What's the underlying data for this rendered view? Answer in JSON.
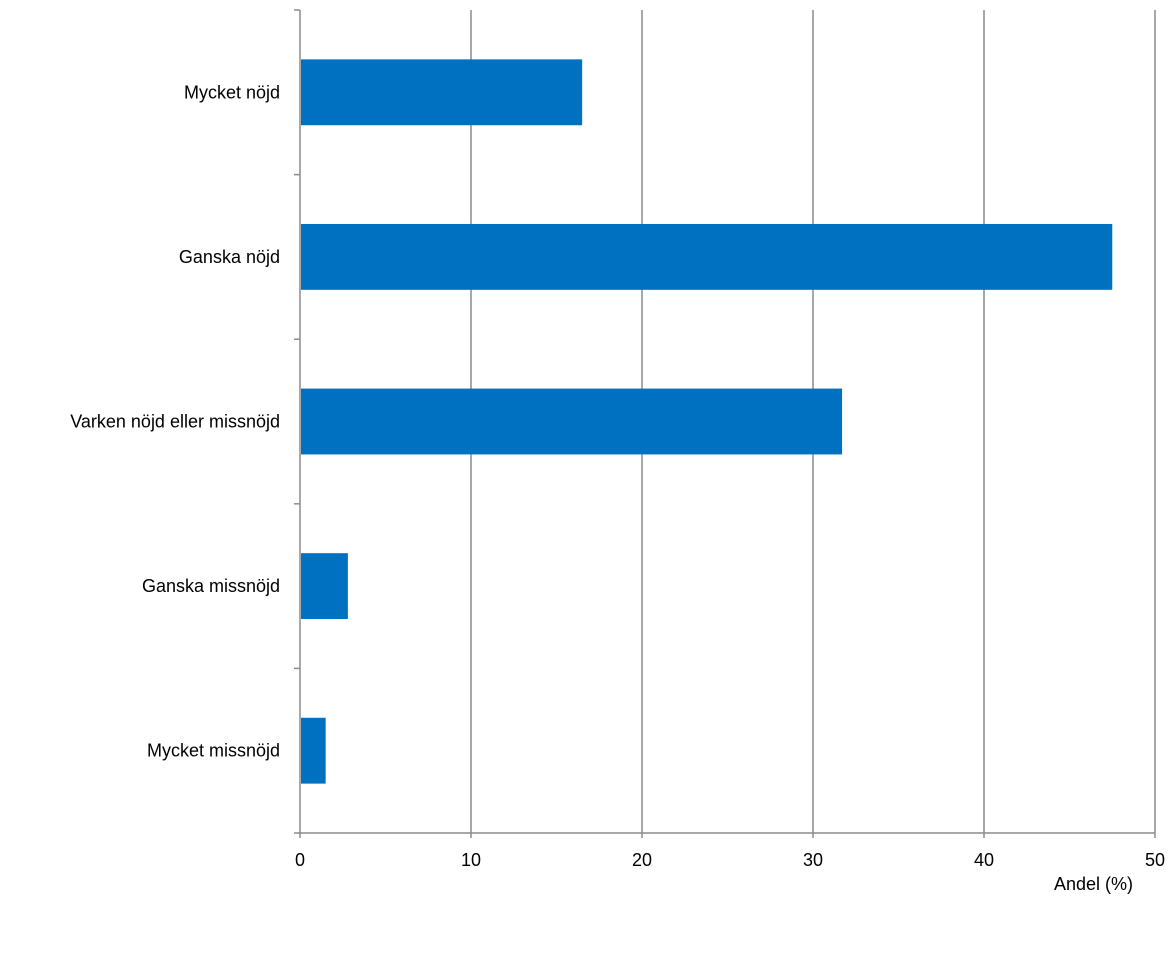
{
  "chart_data": {
    "type": "bar",
    "orientation": "horizontal",
    "categories": [
      "Mycket nöjd",
      "Ganska nöjd",
      "Varken nöjd eller missnöjd",
      "Ganska missnöjd",
      "Mycket missnöjd"
    ],
    "values": [
      16.5,
      47.5,
      31.7,
      2.8,
      1.5
    ],
    "xlabel": "Andel (%)",
    "ylabel": "",
    "xlim": [
      0,
      50
    ],
    "xticks": [
      0,
      10,
      20,
      30,
      40,
      50
    ],
    "grid": true,
    "legend": "none",
    "bar_color": "#0070c0"
  }
}
